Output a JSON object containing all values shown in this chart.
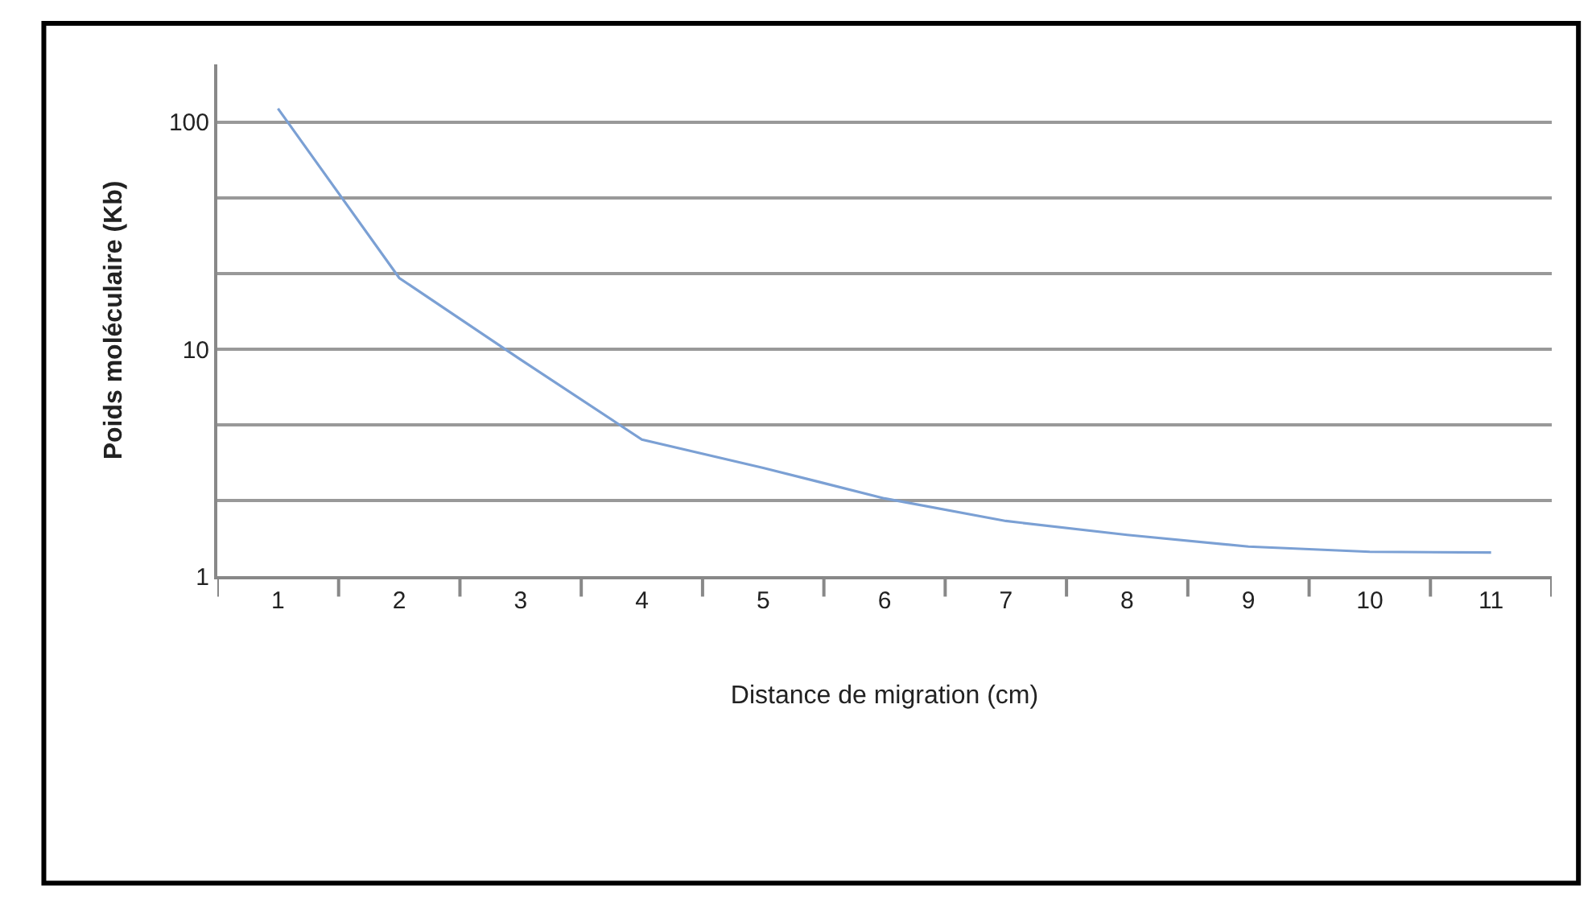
{
  "chart_data": {
    "type": "line",
    "xlabel": "Distance de migration (cm)",
    "ylabel": "Poids moléculaire (Kb)",
    "categories": [
      "1",
      "2",
      "3",
      "4",
      "5",
      "6",
      "7",
      "8",
      "9",
      "10",
      "11"
    ],
    "series": [
      {
        "color": "#7ba0d4",
        "values": [
          115,
          20.6,
          9,
          4.0,
          3.0,
          2.2,
          1.75,
          1.52,
          1.35,
          1.28,
          1.27
        ]
      }
    ],
    "log": true,
    "ylim": [
      1,
      180
    ],
    "yticks": [
      1,
      {
        "value": 2.154,
        "label": null
      },
      {
        "value": 4.642,
        "label": null
      },
      10,
      {
        "value": 21.54,
        "label": null
      },
      {
        "value": 46.42,
        "label": null
      },
      100
    ],
    "grid": "y",
    "marker": "none",
    "line_style": "solid"
  }
}
